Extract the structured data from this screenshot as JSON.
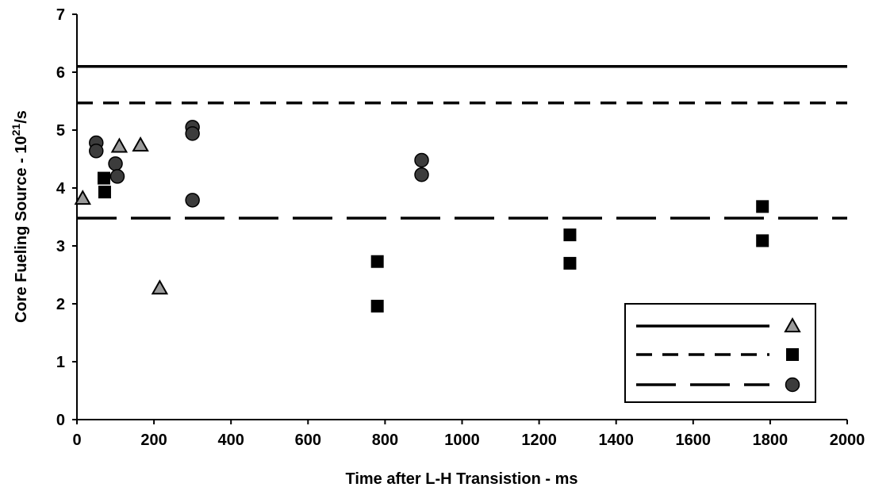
{
  "chart_data": {
    "type": "scatter",
    "title": "",
    "xlabel": "Time after L-H Transistion - ms",
    "ylabel_main": "Core Fueling Source - 10",
    "ylabel_sup": "21",
    "ylabel_tail": "/s",
    "xlim": [
      0,
      2000
    ],
    "ylim": [
      0,
      7
    ],
    "x_ticks": [
      0,
      200,
      400,
      600,
      800,
      1000,
      1200,
      1400,
      1600,
      1800,
      2000
    ],
    "y_ticks": [
      0,
      1,
      2,
      3,
      4,
      5,
      6,
      7
    ],
    "grid": false,
    "legend_position": "bottom-right",
    "series": [
      {
        "marker": "triangle",
        "line_style": "solid",
        "marker_color": "#9a9a9a",
        "line_value": 6.1,
        "points": [
          [
            15,
            3.82
          ],
          [
            110,
            4.72
          ],
          [
            165,
            4.74
          ],
          [
            215,
            2.27
          ]
        ]
      },
      {
        "marker": "square",
        "line_style": "dashed",
        "marker_color": "#000000",
        "line_value": 5.47,
        "points": [
          [
            70,
            4.17
          ],
          [
            72,
            3.93
          ],
          [
            780,
            2.73
          ],
          [
            780,
            1.96
          ],
          [
            1280,
            3.19
          ],
          [
            1280,
            2.7
          ],
          [
            1780,
            3.68
          ],
          [
            1780,
            3.09
          ]
        ]
      },
      {
        "marker": "circle",
        "line_style": "long-dash",
        "marker_color": "#3c3c3c",
        "line_value": 3.48,
        "points": [
          [
            50,
            4.78
          ],
          [
            50,
            4.64
          ],
          [
            100,
            4.42
          ],
          [
            105,
            4.2
          ],
          [
            300,
            5.05
          ],
          [
            300,
            4.94
          ],
          [
            300,
            3.79
          ],
          [
            895,
            4.48
          ],
          [
            895,
            4.23
          ]
        ]
      }
    ]
  }
}
